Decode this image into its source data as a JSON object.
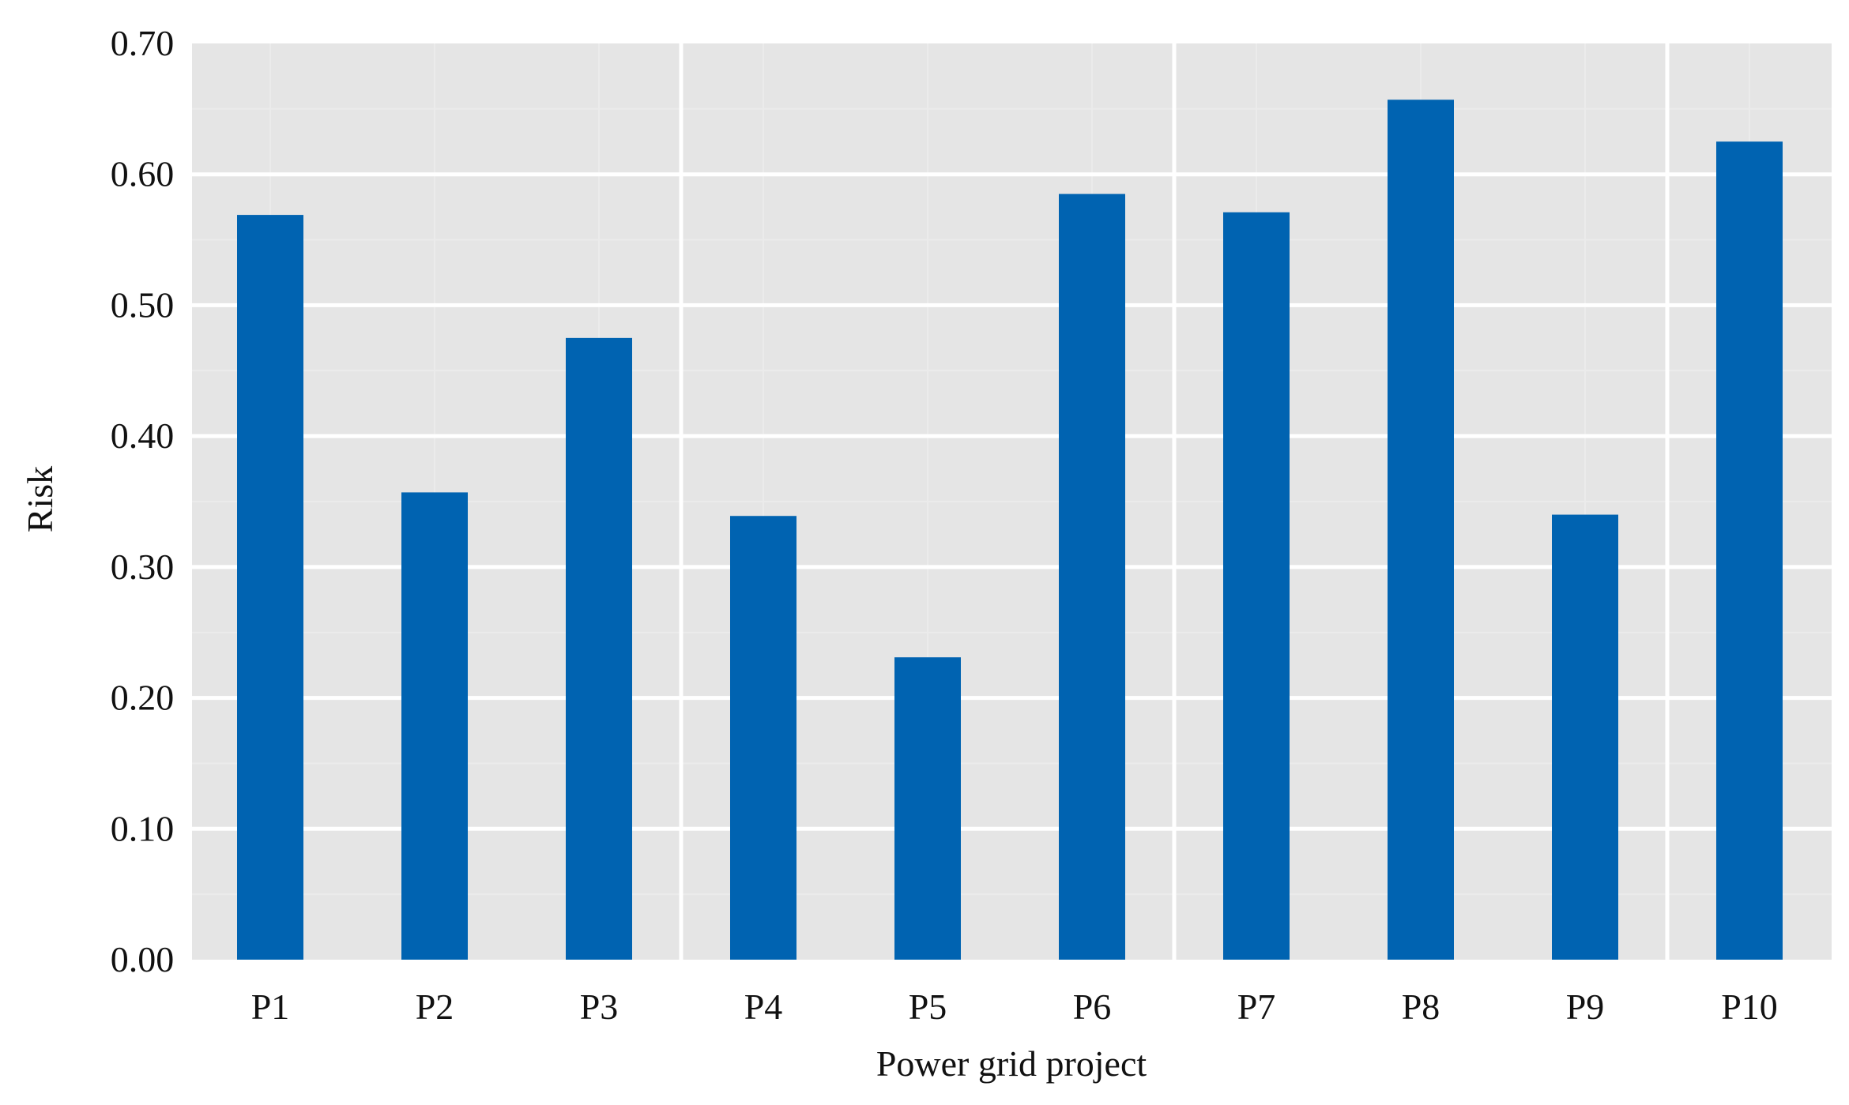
{
  "chart_data": {
    "type": "bar",
    "title": "",
    "xlabel": "Power grid project",
    "ylabel": "Risk",
    "categories": [
      "P1",
      "P2",
      "P3",
      "P4",
      "P5",
      "P6",
      "P7",
      "P8",
      "P9",
      "P10"
    ],
    "values": [
      0.569,
      0.357,
      0.475,
      0.339,
      0.231,
      0.585,
      0.571,
      0.657,
      0.34,
      0.625
    ],
    "ylim": [
      0,
      0.7
    ],
    "yticks": [
      "0.00",
      "0.10",
      "0.20",
      "0.30",
      "0.40",
      "0.50",
      "0.60",
      "0.70"
    ],
    "grid": true,
    "legend": "none",
    "colors": {
      "bar": "#0063B1",
      "panel": "#E5E5E5",
      "grid": "#FFFFFF"
    }
  }
}
